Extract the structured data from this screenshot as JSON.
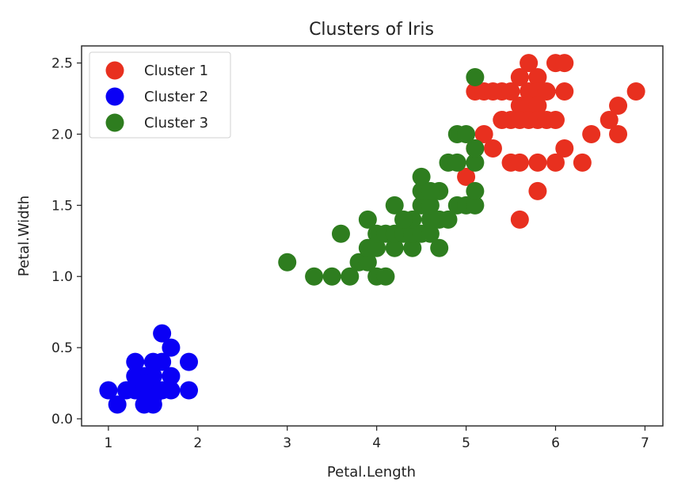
{
  "chart_data": {
    "type": "scatter",
    "title": "Clusters of Iris",
    "xlabel": "Petal.Length",
    "ylabel": "Petal.Width",
    "xlim": [
      0.7,
      7.2
    ],
    "ylim": [
      -0.05,
      2.62
    ],
    "xticks": [
      1,
      2,
      3,
      4,
      5,
      6,
      7
    ],
    "yticks": [
      0.0,
      0.5,
      1.0,
      1.5,
      2.0,
      2.5
    ],
    "ytick_labels": [
      "0.0",
      "0.5",
      "1.0",
      "1.5",
      "2.0",
      "2.5"
    ],
    "legend_position": "top-left",
    "grid": false,
    "series": [
      {
        "name": "Cluster 1",
        "color": "#e8301f",
        "points": [
          [
            5.1,
            2.3
          ],
          [
            5.2,
            2.3
          ],
          [
            5.3,
            2.3
          ],
          [
            5.4,
            2.3
          ],
          [
            5.5,
            2.3
          ],
          [
            5.6,
            2.4
          ],
          [
            5.7,
            2.5
          ],
          [
            5.8,
            2.4
          ],
          [
            6.0,
            2.5
          ],
          [
            6.1,
            2.5
          ],
          [
            5.7,
            2.3
          ],
          [
            5.8,
            2.3
          ],
          [
            5.9,
            2.3
          ],
          [
            6.1,
            2.3
          ],
          [
            5.6,
            2.2
          ],
          [
            5.7,
            2.2
          ],
          [
            5.8,
            2.2
          ],
          [
            5.5,
            2.1
          ],
          [
            5.6,
            2.1
          ],
          [
            5.7,
            2.1
          ],
          [
            5.8,
            2.1
          ],
          [
            5.9,
            2.1
          ],
          [
            5.4,
            2.1
          ],
          [
            6.0,
            2.1
          ],
          [
            5.2,
            2.0
          ],
          [
            5.1,
            1.9
          ],
          [
            5.3,
            1.9
          ],
          [
            5.5,
            1.8
          ],
          [
            5.6,
            1.8
          ],
          [
            5.8,
            1.8
          ],
          [
            6.0,
            1.8
          ],
          [
            6.1,
            1.9
          ],
          [
            6.3,
            1.8
          ],
          [
            6.4,
            2.0
          ],
          [
            6.6,
            2.1
          ],
          [
            6.7,
            2.2
          ],
          [
            6.7,
            2.0
          ],
          [
            6.9,
            2.3
          ],
          [
            5.0,
            1.7
          ],
          [
            5.8,
            1.6
          ],
          [
            5.6,
            1.4
          ]
        ]
      },
      {
        "name": "Cluster 2",
        "color": "#0a00f5",
        "points": [
          [
            1.0,
            0.2
          ],
          [
            1.1,
            0.1
          ],
          [
            1.2,
            0.2
          ],
          [
            1.3,
            0.2
          ],
          [
            1.3,
            0.3
          ],
          [
            1.3,
            0.4
          ],
          [
            1.4,
            0.1
          ],
          [
            1.4,
            0.2
          ],
          [
            1.4,
            0.3
          ],
          [
            1.5,
            0.1
          ],
          [
            1.5,
            0.2
          ],
          [
            1.5,
            0.3
          ],
          [
            1.5,
            0.4
          ],
          [
            1.6,
            0.2
          ],
          [
            1.6,
            0.4
          ],
          [
            1.6,
            0.6
          ],
          [
            1.7,
            0.2
          ],
          [
            1.7,
            0.3
          ],
          [
            1.7,
            0.5
          ],
          [
            1.9,
            0.2
          ],
          [
            1.9,
            0.4
          ],
          [
            1.4,
            0.25
          ],
          [
            1.5,
            0.15
          ]
        ]
      },
      {
        "name": "Cluster 3",
        "color": "#2e7d1f",
        "points": [
          [
            3.0,
            1.1
          ],
          [
            3.3,
            1.0
          ],
          [
            3.5,
            1.0
          ],
          [
            3.6,
            1.3
          ],
          [
            3.7,
            1.0
          ],
          [
            3.8,
            1.1
          ],
          [
            3.9,
            1.1
          ],
          [
            3.9,
            1.2
          ],
          [
            3.9,
            1.4
          ],
          [
            4.0,
            1.0
          ],
          [
            4.0,
            1.2
          ],
          [
            4.0,
            1.3
          ],
          [
            4.1,
            1.0
          ],
          [
            4.1,
            1.3
          ],
          [
            4.2,
            1.2
          ],
          [
            4.2,
            1.3
          ],
          [
            4.2,
            1.5
          ],
          [
            4.3,
            1.3
          ],
          [
            4.4,
            1.2
          ],
          [
            4.4,
            1.3
          ],
          [
            4.4,
            1.4
          ],
          [
            4.5,
            1.3
          ],
          [
            4.5,
            1.5
          ],
          [
            4.5,
            1.6
          ],
          [
            4.5,
            1.7
          ],
          [
            4.6,
            1.3
          ],
          [
            4.6,
            1.4
          ],
          [
            4.6,
            1.5
          ],
          [
            4.7,
            1.2
          ],
          [
            4.7,
            1.4
          ],
          [
            4.7,
            1.6
          ],
          [
            4.8,
            1.4
          ],
          [
            4.8,
            1.8
          ],
          [
            4.9,
            1.5
          ],
          [
            4.9,
            1.8
          ],
          [
            4.9,
            2.0
          ],
          [
            5.0,
            1.5
          ],
          [
            5.0,
            2.0
          ],
          [
            5.1,
            1.5
          ],
          [
            5.1,
            1.6
          ],
          [
            5.1,
            1.8
          ],
          [
            5.1,
            1.9
          ],
          [
            5.1,
            2.4
          ],
          [
            4.3,
            1.4
          ],
          [
            4.6,
            1.6
          ]
        ]
      }
    ]
  }
}
